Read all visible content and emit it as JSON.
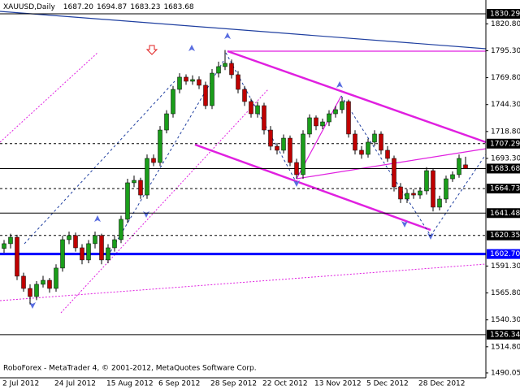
{
  "chart_data": {
    "type": "candlestick",
    "header": {
      "symbol": "XAUUSD,Daily",
      "ohlc": [
        {
          "value": 1687.2,
          "label": "1687.20"
        },
        1694.87,
        1683.23,
        1683.68
      ]
    },
    "footer": "RoboForex - MetaTrader 4, © 2001-2012, MetaQuotes Software Corp.",
    "x_labels": [
      "2 Jul 2012",
      "24 Jul 2012",
      "15 Aug 2012",
      "6 Sep 2012",
      "28 Sep 2012",
      "22 Oct 2012",
      "13 Nov 2012",
      "5 Dec 2012",
      "28 Dec 2012"
    ],
    "ylim": [
      1485.4,
      1843.4
    ],
    "yticks": [
      {
        "value": 1820.8,
        "label": "1820.80"
      },
      {
        "value": 1795.3,
        "label": "1795.30"
      },
      {
        "value": 1769.8,
        "label": "1769.80"
      },
      {
        "value": 1744.3,
        "label": "1744.30"
      },
      {
        "value": 1718.8,
        "label": "1718.80"
      },
      {
        "value": 1693.3,
        "label": "1693.30"
      },
      {
        "value": 1591.3,
        "label": "1591.30"
      },
      {
        "value": 1565.8,
        "label": "1565.80"
      },
      {
        "value": 1540.3,
        "label": "1540.30"
      },
      {
        "value": 1514.8,
        "label": "1514.80"
      },
      1490.05
    ],
    "levels": [
      1830.29,
      1707.29,
      1683.68,
      1664.73,
      1641.48,
      1620.35,
      {
        "value": 1602.7,
        "label": "1602.70"
      },
      1526.34
    ],
    "level_colors": [
      "#000000",
      "#000000",
      "#000000",
      "#000000",
      "#000000",
      "#000000",
      "#0000ff",
      "#000000"
    ],
    "level_dashed": [
      false,
      true,
      false,
      true,
      false,
      true,
      false,
      false
    ],
    "up_color": "#1a9e1a",
    "down_color": "#c00000",
    "open": [
      1608.0,
      1612.5,
      1618.6,
      1581.7,
      1570.1,
      1562.4,
      1574.0,
      1577.8,
      1570.1,
      1589.4,
      1616.3,
      1620.2,
      1608.6,
      1597.1,
      1612.5,
      1620.2,
      1597.1,
      1608.6,
      1616.3,
      1635.6,
      1670.2,
      1672.5,
      1658.6,
      1693.3,
      1689.4,
      1720.2,
      1735.6,
      1758.7,
      1770.3,
      1766.4,
      1768.0,
      1762.6,
      1743.3,
      1774.1,
      1780.3,
      1783.4,
      1772.6,
      1758.7,
      1747.2,
      1735.6,
      1743.3,
      1720.2,
      1704.8,
      1701.0,
      1712.5,
      1689.4,
      1677.9,
      1716.4,
      1731.8,
      1724.1,
      1727.9,
      1735.6,
      1739.5,
      1747.2,
      1716.4,
      1701.0,
      1697.1,
      1708.7,
      1716.4,
      1701.0,
      1693.3,
      1666.3,
      1654.8,
      1660.2,
      1658.6,
      1662.5,
      1681.7,
      1647.1,
      1654.8,
      1674.0,
      1677.9,
      1687.2
    ],
    "high": [
      1616,
      1622,
      1621,
      1585,
      1574,
      1577,
      1582,
      1580,
      1593,
      1620,
      1624,
      1623,
      1612,
      1616,
      1624,
      1622,
      1612,
      1620,
      1639,
      1674,
      1677,
      1675,
      1697,
      1697,
      1724,
      1739,
      1762,
      1774,
      1773,
      1772,
      1771,
      1766,
      1778,
      1785,
      1796,
      1787,
      1776,
      1762,
      1750,
      1747,
      1746,
      1724,
      1708,
      1716,
      1715,
      1693,
      1720,
      1735,
      1734,
      1731,
      1739,
      1743,
      1751,
      1749,
      1720,
      1705,
      1712,
      1720,
      1719,
      1705,
      1696,
      1670,
      1664,
      1664,
      1666,
      1685,
      1684,
      1658,
      1677,
      1681,
      1697,
      1694.87
    ],
    "low": [
      1604,
      1608,
      1578,
      1567,
      1555,
      1559,
      1571,
      1566,
      1567,
      1586,
      1612,
      1605,
      1593,
      1594,
      1608,
      1593,
      1594,
      1605,
      1613,
      1632,
      1666,
      1655,
      1655,
      1686,
      1686,
      1717,
      1732,
      1755,
      1763,
      1763,
      1759,
      1740,
      1740,
      1770,
      1777,
      1769,
      1755,
      1743,
      1732,
      1732,
      1716,
      1701,
      1697,
      1698,
      1686,
      1674,
      1674,
      1713,
      1720,
      1721,
      1724,
      1732,
      1736,
      1713,
      1697,
      1693,
      1694,
      1705,
      1697,
      1690,
      1662,
      1651,
      1651,
      1655,
      1655,
      1659,
      1643,
      1644,
      1651,
      1671,
      1675,
      1683.23
    ],
    "close": [
      1612.5,
      1618.6,
      1581.7,
      1570.1,
      1562.4,
      1574.0,
      1577.8,
      1570.1,
      1589.4,
      1616.3,
      1620.2,
      1608.6,
      1597.1,
      1612.5,
      1620.2,
      1597.1,
      1608.6,
      1616.3,
      1635.6,
      1670.2,
      1672.5,
      1658.6,
      1693.3,
      1689.4,
      1720.2,
      1735.6,
      1758.7,
      1770.3,
      1766.4,
      1768.0,
      1762.6,
      1743.3,
      1774.1,
      1780.3,
      1783.4,
      1772.6,
      1758.7,
      1747.2,
      1735.6,
      1743.3,
      1720.2,
      1704.8,
      1701.0,
      1712.5,
      1689.4,
      1677.9,
      1716.4,
      1731.8,
      1724.1,
      1727.9,
      1735.6,
      1739.5,
      1747.2,
      1716.4,
      1701.0,
      1697.1,
      1708.7,
      1716.4,
      1701.0,
      1693.3,
      1666.3,
      1654.8,
      1660.2,
      1658.6,
      1662.5,
      1681.7,
      1647.1,
      1654.8,
      1674.0,
      1677.9,
      1693.3,
      1683.68
    ]
  }
}
